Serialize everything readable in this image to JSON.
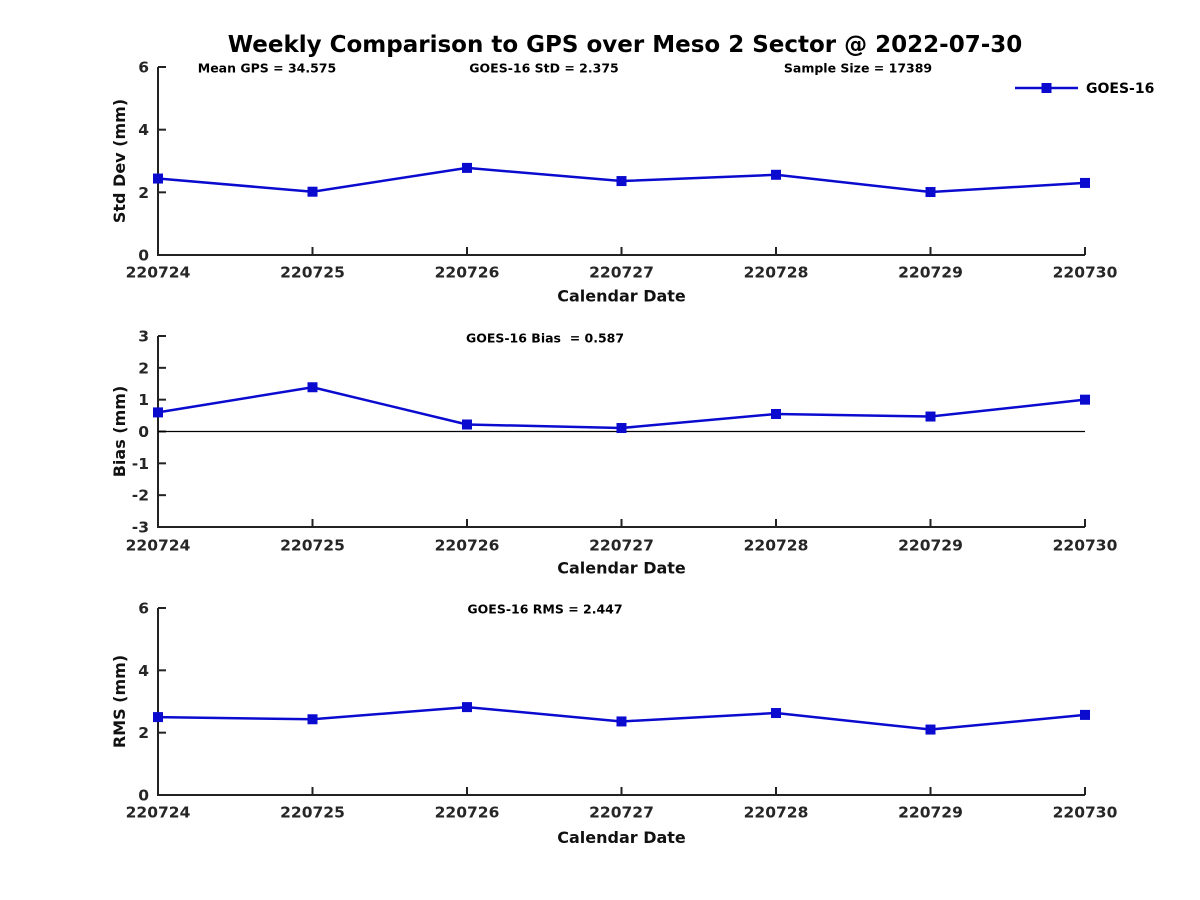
{
  "figure": {
    "title": "Weekly Comparison to GPS over Meso 2 Sector @ 2022-07-30",
    "legend": {
      "label": "GOES-16"
    },
    "colors": {
      "line": "#0b0bd0",
      "axis": "#222222",
      "text": "#111111",
      "zero_line": "#000000",
      "background": "#ffffff"
    }
  },
  "chart_data": [
    {
      "type": "line",
      "id": "std-dev",
      "annotations": [
        "Mean GPS = 34.575",
        "GOES-16 StD = 2.375",
        "Sample Size = 17389"
      ],
      "categories": [
        "220724",
        "220725",
        "220726",
        "220727",
        "220728",
        "220729",
        "220730"
      ],
      "series": [
        {
          "name": "GOES-16",
          "values": [
            2.44,
            2.02,
            2.78,
            2.36,
            2.56,
            2.01,
            2.3
          ]
        }
      ],
      "xlabel": "Calendar Date",
      "ylabel": "Std Dev (mm)",
      "ylim": [
        0,
        6
      ],
      "yticks": [
        0,
        2,
        4,
        6
      ],
      "grid": false,
      "legend_position": "top-right-outside",
      "marker": "square"
    },
    {
      "type": "line",
      "id": "bias",
      "annotations": [
        "GOES-16 Bias  = 0.587"
      ],
      "categories": [
        "220724",
        "220725",
        "220726",
        "220727",
        "220728",
        "220729",
        "220730"
      ],
      "series": [
        {
          "name": "GOES-16",
          "values": [
            0.6,
            1.39,
            0.22,
            0.11,
            0.55,
            0.47,
            1.0
          ]
        }
      ],
      "xlabel": "Calendar Date",
      "ylabel": "Bias (mm)",
      "ylim": [
        -3,
        3
      ],
      "yticks": [
        -3,
        -2,
        -1,
        0,
        1,
        2,
        3
      ],
      "zero_line": true,
      "grid": false,
      "marker": "square"
    },
    {
      "type": "line",
      "id": "rms",
      "annotations": [
        "GOES-16 RMS = 2.447"
      ],
      "categories": [
        "220724",
        "220725",
        "220726",
        "220727",
        "220728",
        "220729",
        "220730"
      ],
      "series": [
        {
          "name": "GOES-16",
          "values": [
            2.5,
            2.43,
            2.82,
            2.36,
            2.63,
            2.1,
            2.57
          ]
        }
      ],
      "xlabel": "Calendar Date",
      "ylabel": "RMS (mm)",
      "ylim": [
        0,
        6
      ],
      "yticks": [
        0,
        2,
        4,
        6
      ],
      "grid": false,
      "marker": "square"
    }
  ]
}
